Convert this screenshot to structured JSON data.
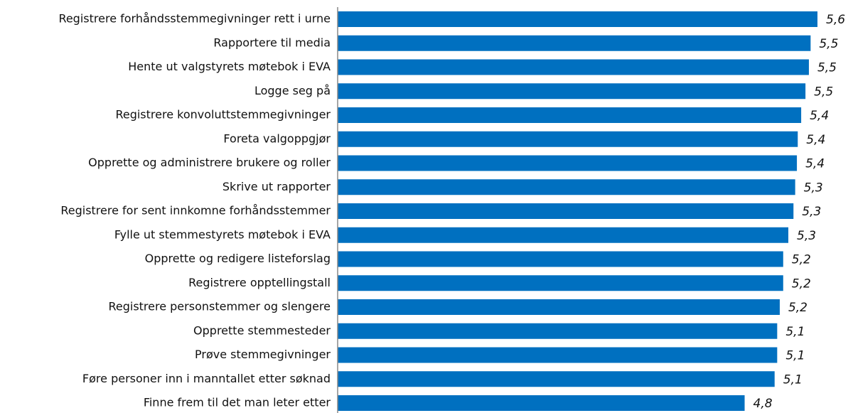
{
  "chart_data": {
    "type": "hbar",
    "categories": [
      "Registrere forhåndsstemmegivninger rett i urne",
      "Rapportere til media",
      "Hente ut valgstyrets møtebok i EVA",
      "Logge seg på",
      "Registrere konvoluttstemmegivninger",
      "Foreta valgoppgjør",
      "Opprette og administrere brukere og roller",
      "Skrive ut rapporter",
      "Registrere for sent innkomne forhåndsstemmer",
      "Fylle ut stemmestyrets møtebok i EVA",
      "Opprette og redigere listeforslag",
      "Registrere opptellingstall",
      "Registrere personstemmer og slengere",
      "Opprette stemmesteder",
      "Prøve stemmegivninger",
      "Føre personer inn i manntallet etter søknad",
      "Finne frem til det man leter etter"
    ],
    "values": [
      5.6,
      5.52,
      5.5,
      5.46,
      5.41,
      5.37,
      5.36,
      5.34,
      5.32,
      5.26,
      5.2,
      5.2,
      5.16,
      5.13,
      5.13,
      5.1,
      4.75
    ],
    "value_labels": [
      "5,6",
      "5,5",
      "5,5",
      "5,5",
      "5,4",
      "5,4",
      "5,4",
      "5,3",
      "5,3",
      "5,3",
      "5,2",
      "5,2",
      "5,2",
      "5,1",
      "5,1",
      "5,1",
      "4,8"
    ],
    "color": "#0070c0",
    "xlim": [
      0,
      5.6
    ]
  }
}
